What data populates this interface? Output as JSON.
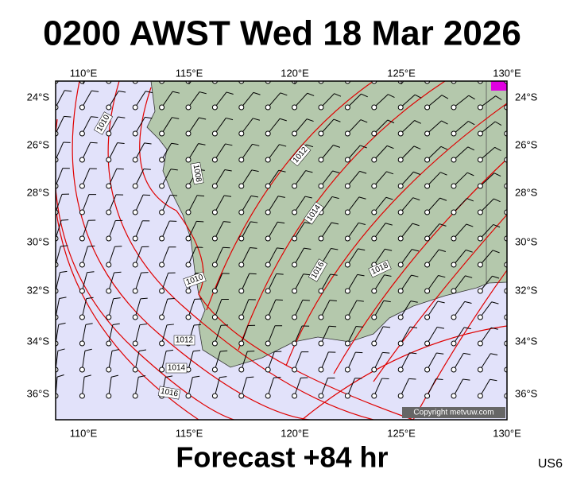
{
  "header": {
    "title": "0200 AWST Wed 18 Mar 2026"
  },
  "map": {
    "lon_labels": [
      "110°E",
      "115°E",
      "120°E",
      "125°E",
      "130°E"
    ],
    "lat_labels": [
      "24°S",
      "26°S",
      "28°S",
      "30°S",
      "32°S",
      "34°S",
      "36°S"
    ],
    "isobar_labels": [
      "1010",
      "1008",
      "1012",
      "1014",
      "1016",
      "1018",
      "1010",
      "1012",
      "1014",
      "1016"
    ],
    "copyright": "Copyright metvuw.com"
  },
  "footer": {
    "forecast": "Forecast +84 hr",
    "code": "US6"
  }
}
